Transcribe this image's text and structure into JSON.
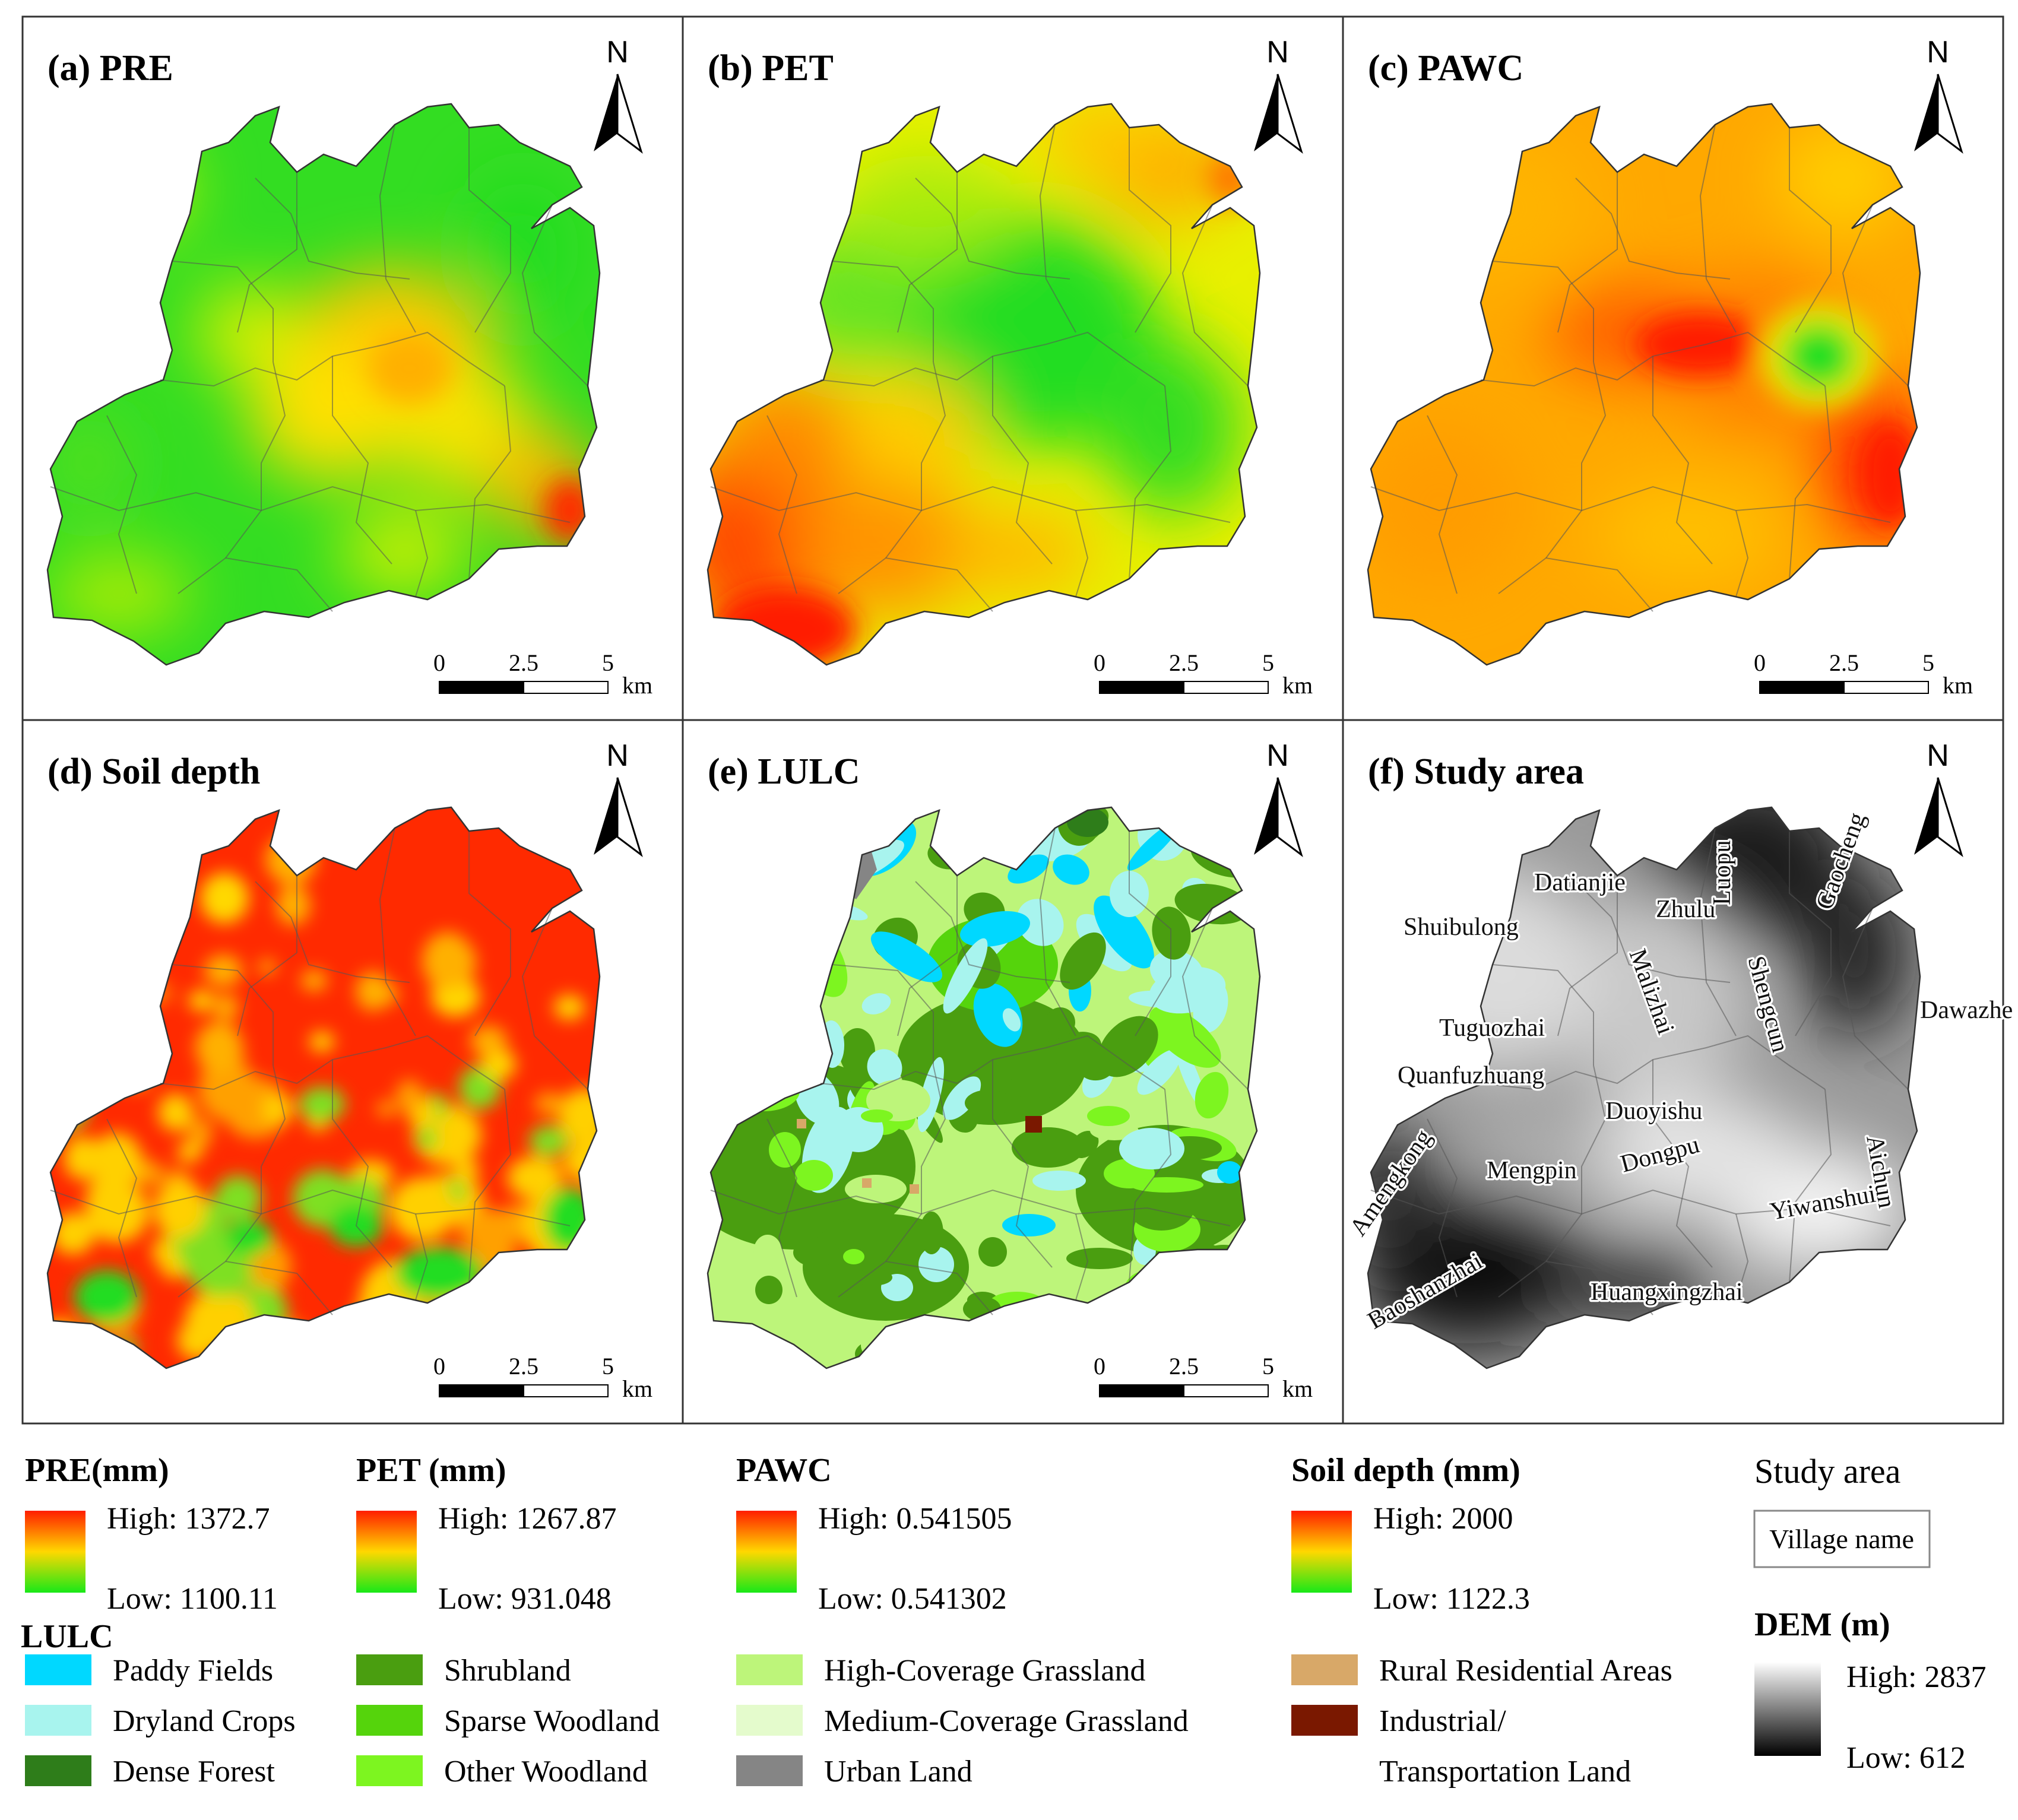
{
  "panels": [
    {
      "id": "a",
      "title": "(a) PRE",
      "type": "gradient",
      "style": "pre"
    },
    {
      "id": "b",
      "title": "(b) PET",
      "type": "gradient",
      "style": "pet"
    },
    {
      "id": "c",
      "title": "(c) PAWC",
      "type": "gradient",
      "style": "pawc"
    },
    {
      "id": "d",
      "title": "(d) Soil depth",
      "type": "gradient",
      "style": "soil"
    },
    {
      "id": "e",
      "title": "(e) LULC",
      "type": "lulc",
      "style": "lulc"
    },
    {
      "id": "f",
      "title": "(f) Study area",
      "type": "dem",
      "style": "dem"
    }
  ],
  "north_label": "N",
  "scalebar": {
    "ticks": [
      "0",
      "2.5",
      "5"
    ],
    "unit": "km"
  },
  "villages": [
    "Datianjie",
    "Zhulu",
    "Luopu",
    "Gaocheng",
    "Shuibulong",
    "Malizhai",
    "Shengcun",
    "Tuguozhai",
    "Dawazhe",
    "Quanfuzhuang",
    "Duoyishu",
    "Aichun",
    "Amengkong",
    "Mengpin",
    "Dongpu",
    "Yiwanshui",
    "Baoshanzhai",
    "Huangxingzhai"
  ],
  "legend": {
    "pre": {
      "title": "PRE(mm)",
      "high": "High: 1372.7",
      "low": "Low: 1100.11"
    },
    "pet": {
      "title": "PET (mm)",
      "high": "High: 1267.87",
      "low": "Low: 931.048"
    },
    "pawc": {
      "title": "PAWC",
      "high": "High: 0.541505",
      "low": "Low: 0.541302"
    },
    "soil": {
      "title": "Soil depth (mm)",
      "high": "High: 2000",
      "low": "Low: 1122.3"
    },
    "study": {
      "title": "Study area",
      "village_box": "Village name"
    },
    "dem": {
      "title": "DEM (m)",
      "high": "High: 2837",
      "low": "Low: 612"
    },
    "lulc": {
      "title": "LULC",
      "classes": [
        {
          "label": "Paddy Fields",
          "color": "#00d8ff"
        },
        {
          "label": "Dryland Crops",
          "color": "#a8f4ee"
        },
        {
          "label": "Dense Forest",
          "color": "#2e7d1a"
        },
        {
          "label": "Shrubland",
          "color": "#4a9e10"
        },
        {
          "label": "Sparse Woodland",
          "color": "#55d40c"
        },
        {
          "label": "Other Woodland",
          "color": "#7df520"
        },
        {
          "label": "High-Coverage Grassland",
          "color": "#bdf57a"
        },
        {
          "label": "Medium-Coverage Grassland",
          "color": "#e4fbcc"
        },
        {
          "label": "Urban Land",
          "color": "#858585"
        },
        {
          "label": "Rural Residential Areas",
          "color": "#d8a868"
        },
        {
          "label": "Industrial/",
          "color": "#7a1800"
        },
        {
          "label": "Transportation Land",
          "color": ""
        }
      ]
    }
  },
  "colors": {
    "high": "#ff1e00",
    "mid": "#ffd800",
    "low": "#18e818",
    "dem_high": "#ffffff",
    "dem_low": "#000000"
  }
}
